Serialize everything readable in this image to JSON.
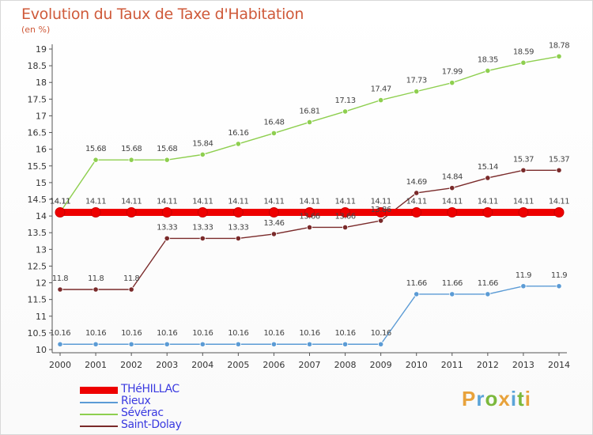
{
  "header": {
    "title": "Evolution du Taux de Taxe d'Habitation",
    "unit": "(en %)"
  },
  "logo": {
    "letters": [
      "P",
      "r",
      "o",
      "x",
      "i",
      "t",
      "i"
    ],
    "colors": [
      "#e8a23b",
      "#5ba4d8",
      "#7bb83c",
      "#e8a23b",
      "#5ba4d8",
      "#7bb83c",
      "#e8a23b"
    ]
  },
  "chart_data": {
    "type": "line",
    "title": "Evolution du Taux de Taxe d'Habitation",
    "ylabel": "(en %)",
    "xlabel": "",
    "x": [
      "2000",
      "2001",
      "2002",
      "2003",
      "2004",
      "2005",
      "2006",
      "2007",
      "2008",
      "2009",
      "2010",
      "2011",
      "2012",
      "2013",
      "2014"
    ],
    "ylim": [
      10,
      19
    ],
    "yticks": [
      "10",
      "10.5",
      "11",
      "11.5",
      "12",
      "12.5",
      "13",
      "13.5",
      "14",
      "14.5",
      "15",
      "15.5",
      "16",
      "16.5",
      "17",
      "17.5",
      "18",
      "18.5",
      "19"
    ],
    "grid": false,
    "legend_position": "bottom-left",
    "series": [
      {
        "name": "THéHILLAC",
        "color": "#ee0000",
        "values": [
          14.11,
          14.11,
          14.11,
          14.11,
          14.11,
          14.11,
          14.11,
          14.11,
          14.11,
          14.11,
          14.11,
          14.11,
          14.11,
          14.11,
          14.11
        ],
        "labels": [
          "14.11",
          "14.11",
          "14.11",
          "14.11",
          "14.11",
          "14.11",
          "14.11",
          "14.11",
          "14.11",
          "14.11",
          "14.11",
          "14.11",
          "14.11",
          "14.11",
          "14.11"
        ]
      },
      {
        "name": "Rieux",
        "color": "#5b9bd5",
        "values": [
          10.16,
          10.16,
          10.16,
          10.16,
          10.16,
          10.16,
          10.16,
          10.16,
          10.16,
          10.16,
          11.66,
          11.66,
          11.66,
          11.9,
          11.9
        ],
        "labels": [
          "10.16",
          "10.16",
          "10.16",
          "10.16",
          "10.16",
          "10.16",
          "10.16",
          "10.16",
          "10.16",
          "10.16",
          "11.66",
          "11.66",
          "11.66",
          "11.9",
          "11.9"
        ]
      },
      {
        "name": "Sévérac",
        "color": "#8ecf4f",
        "values": [
          14.11,
          15.68,
          15.68,
          15.68,
          15.84,
          16.16,
          16.48,
          16.81,
          17.13,
          17.47,
          17.73,
          17.99,
          18.35,
          18.59,
          18.78
        ],
        "labels": [
          "14.11",
          "15.68",
          "15.68",
          "15.68",
          "15.84",
          "16.16",
          "16.48",
          "16.81",
          "17.13",
          "17.47",
          "17.73",
          "17.99",
          "18.35",
          "18.59",
          "18.78"
        ]
      },
      {
        "name": "Saint-Dolay",
        "color": "#7a2a2a",
        "values": [
          11.8,
          11.8,
          11.8,
          13.33,
          13.33,
          13.33,
          13.46,
          13.66,
          13.66,
          13.86,
          14.69,
          14.84,
          15.14,
          15.37,
          15.37
        ],
        "labels": [
          "11.8",
          "11.8",
          "11.8",
          "13.33",
          "13.33",
          "13.33",
          "13.46",
          "13.66",
          "13.66",
          "13.86",
          "14.69",
          "14.84",
          "15.14",
          "15.37",
          "15.37"
        ]
      }
    ]
  }
}
